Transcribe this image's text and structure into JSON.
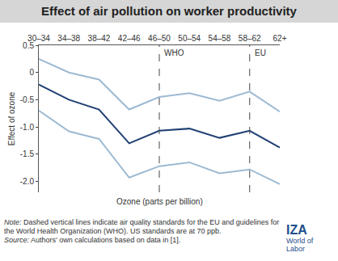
{
  "chart_data": {
    "type": "line",
    "title": "Effect of air pollution on worker productivity",
    "x_label": "Ozone (parts per billion)",
    "y_label": "Effect of ozone",
    "categories": [
      "30–34",
      "34–38",
      "38–42",
      "42–46",
      "46–50",
      "50–54",
      "54–58",
      "58–62",
      "62+"
    ],
    "series": [
      {
        "color": "#9dbad3",
        "line_style": "solid",
        "values": [
          0.25,
          0.0,
          -0.13,
          -0.68,
          -0.45,
          -0.38,
          -0.52,
          -0.35,
          -0.72
        ]
      },
      {
        "color": "#1f3f73",
        "line_style": "solid",
        "values": [
          -0.22,
          -0.5,
          -0.68,
          -1.3,
          -1.07,
          -1.03,
          -1.2,
          -1.07,
          -1.38
        ]
      },
      {
        "color": "#9dbad3",
        "line_style": "solid",
        "values": [
          -0.7,
          -1.08,
          -1.22,
          -1.93,
          -1.72,
          -1.65,
          -1.85,
          -1.78,
          -2.05
        ]
      }
    ],
    "ylim": [
      -2.2,
      0.5
    ],
    "yticks": [
      0.5,
      0,
      -0.5,
      {
        "value": -1,
        "label": "-1.0"
      },
      -1.5,
      {
        "value": -2,
        "label": "-2.0"
      }
    ],
    "grid": false,
    "annotations": [
      {
        "text": "WHO",
        "x": "46–50",
        "line_style": "dash"
      },
      {
        "text": "EU",
        "x": "58–62",
        "line_style": "dash"
      }
    ],
    "note_label": "Note:",
    "note": "Dashed vertical lines indicate air quality standards for the EU and guidelines for the World Health Organization (WHO). US standards are at 70 ppb.",
    "source_label": "Source:",
    "source": "Authors' own calculations based on data in [1].",
    "logo": [
      "IZA",
      "World of Labor"
    ]
  }
}
